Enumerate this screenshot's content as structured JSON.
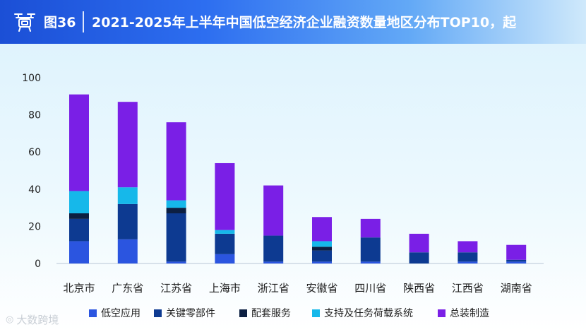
{
  "header": {
    "figure_number": "图36",
    "title": "2021-2025年上半年中国低空经济企业融资数量地区分布TOP10，起"
  },
  "colors": {
    "低空应用": "#2b55e0",
    "关键零部件": "#0d3a91",
    "配套服务": "#0c1f42",
    "支持及任务荷载系统": "#16b8ea",
    "总装制造": "#7a1fe6",
    "axis_text": "#1f1f1f"
  },
  "watermark": {
    "text": "大数跨境",
    "logo_icon": "brand-logo-icon"
  },
  "chart_data": {
    "type": "bar",
    "stacked": true,
    "title": "2021-2025年上半年中国低空经济企业融资数量地区分布TOP10，起",
    "xlabel": "",
    "ylabel": "",
    "ylim": [
      0,
      100
    ],
    "yticks": [
      0,
      20,
      40,
      60,
      80,
      100
    ],
    "grid": false,
    "legend_position": "bottom",
    "categories": [
      "北京市",
      "广东省",
      "江苏省",
      "上海市",
      "浙江省",
      "安徽省",
      "四川省",
      "陕西省",
      "江西省",
      "湖南省"
    ],
    "series": [
      {
        "name": "低空应用",
        "values": [
          12,
          13,
          1,
          5,
          1,
          1,
          1,
          0,
          1,
          1
        ]
      },
      {
        "name": "关键零部件",
        "values": [
          12,
          19,
          26,
          11,
          14,
          6,
          13,
          6,
          5,
          1
        ]
      },
      {
        "name": "配套服务",
        "values": [
          3,
          0,
          3,
          0,
          0,
          2,
          0,
          0,
          0,
          0
        ]
      },
      {
        "name": "支持及任务荷载系统",
        "values": [
          12,
          9,
          4,
          2,
          0,
          3,
          0,
          0,
          0,
          0
        ]
      },
      {
        "name": "总装制造",
        "values": [
          52,
          46,
          42,
          36,
          27,
          13,
          10,
          10,
          6,
          8
        ]
      }
    ]
  }
}
